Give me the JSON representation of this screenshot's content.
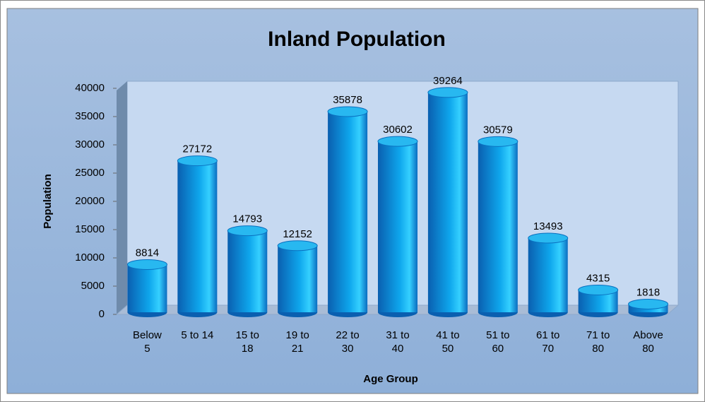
{
  "chart_data": {
    "type": "bar",
    "title": "Inland Population",
    "x_label": "Age Group",
    "y_label": "Population",
    "categories": [
      "Below 5",
      "5 to 14",
      "15 to 18",
      "19 to 21",
      "22 to 30",
      "31 to 40",
      "41 to 50",
      "51 to 60",
      "61 to 70",
      "71 to 80",
      "Above 80"
    ],
    "values": [
      8814,
      27172,
      14793,
      12152,
      35878,
      30602,
      39264,
      30579,
      13493,
      4315,
      1818
    ],
    "color": "#0ea6ec",
    "ylim": [
      0,
      40000
    ],
    "yticks": [
      0,
      5000,
      10000,
      15000,
      20000,
      25000,
      30000,
      35000,
      40000
    ],
    "grid": false
  }
}
